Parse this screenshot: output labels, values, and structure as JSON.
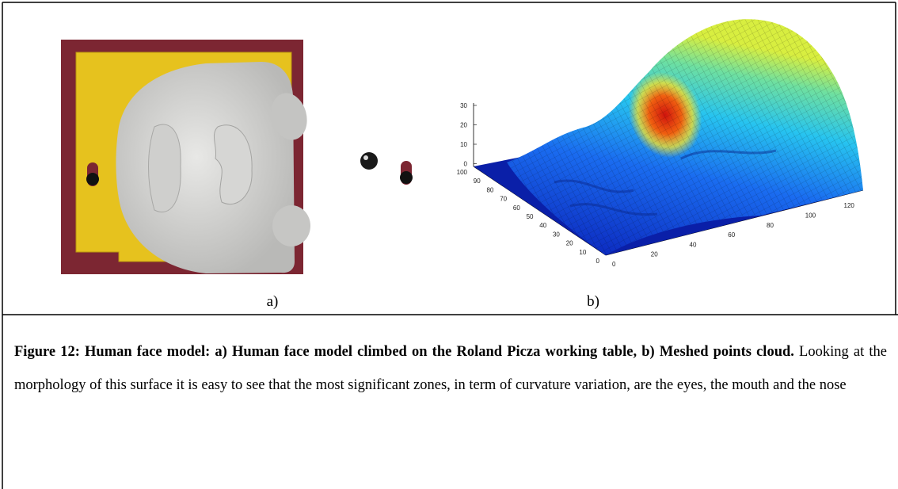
{
  "figure": {
    "panel_a": {
      "label": "a)"
    },
    "panel_b": {
      "label": "b)",
      "z_ticks": [
        "30",
        "20",
        "10",
        "0"
      ],
      "y_ticks": [
        "100",
        "90",
        "80",
        "70",
        "60",
        "50",
        "40",
        "30",
        "20",
        "10",
        "0"
      ],
      "x_ticks": [
        "0",
        "20",
        "40",
        "60",
        "80",
        "100",
        "120"
      ]
    },
    "caption": {
      "bold": "Figure 12: Human face model: a) Human face model climbed on the Roland Picza working table, b) Meshed points cloud.",
      "text": " Looking at the morphology of this surface it is easy to see that the most significant zones, in term of curvature variation, are the eyes, the mouth and the nose"
    }
  }
}
